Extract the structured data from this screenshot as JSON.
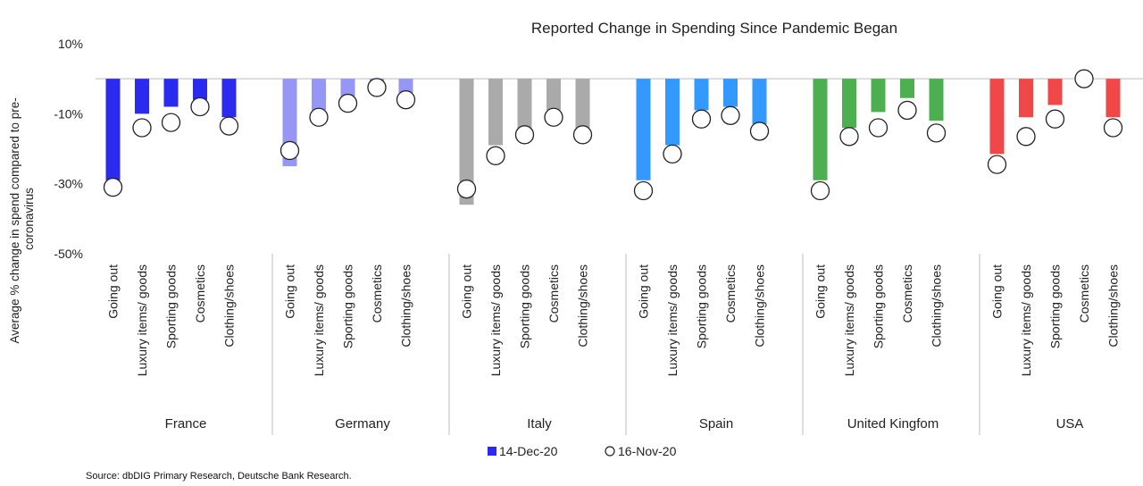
{
  "chart_data": {
    "type": "bar",
    "title": "Reported Change in Spending Since Pandemic Began",
    "ylabel": "Average % change in spend compared to pre-coronavirus",
    "ylabel_lines": [
      "Average % change in spend compared to pre-",
      "coronavirus"
    ],
    "ylim": [
      -50,
      10
    ],
    "yticks": [
      10,
      -10,
      -30,
      -50
    ],
    "ytick_labels": [
      "10%",
      "-10%",
      "-30%",
      "-50%"
    ],
    "categories": [
      "Going out",
      "Luxury items/ goods",
      "Sporting goods",
      "Cosmetics",
      "Clothing/shoes"
    ],
    "groups": [
      {
        "name": "France",
        "color": "#2b2bf0",
        "dec": [
          -29,
          -10,
          -8,
          -6,
          -11
        ],
        "nov": [
          -31,
          -14,
          -12.5,
          -8,
          -13.5
        ]
      },
      {
        "name": "Germany",
        "color": "#9696f4",
        "dec": [
          -25,
          -9,
          -5,
          -1,
          -4
        ],
        "nov": [
          -20.5,
          -11,
          -7,
          -2.5,
          -6
        ]
      },
      {
        "name": "Italy",
        "color": "#aaaaaa",
        "dec": [
          -36,
          -19,
          -15,
          -9,
          -14
        ],
        "nov": [
          -31.5,
          -22,
          -16,
          -11,
          -16
        ]
      },
      {
        "name": "Spain",
        "color": "#3399ff",
        "dec": [
          -29,
          -19,
          -9,
          -8,
          -13
        ],
        "nov": [
          -32,
          -21.5,
          -11.5,
          -10.5,
          -15
        ]
      },
      {
        "name": "United Kingfom",
        "color": "#4caf50",
        "dec": [
          -29,
          -14,
          -9.5,
          -5.5,
          -12
        ],
        "nov": [
          -32,
          -16.5,
          -14,
          -9,
          -15.5
        ]
      },
      {
        "name": "USA",
        "color": "#f04848",
        "dec": [
          -21.5,
          -11,
          -7.5,
          0,
          -11
        ],
        "nov": [
          -24.5,
          -16.5,
          -11.5,
          0,
          -14
        ]
      }
    ],
    "series": [
      {
        "name": "14-Dec-20",
        "key": "dec",
        "style": "bar"
      },
      {
        "name": "16-Nov-20",
        "key": "nov",
        "style": "open circle marker"
      }
    ],
    "legend_position": "bottom-center",
    "grid": false
  },
  "source": "Source: dbDIG Primary Research, Deutsche Bank Research."
}
